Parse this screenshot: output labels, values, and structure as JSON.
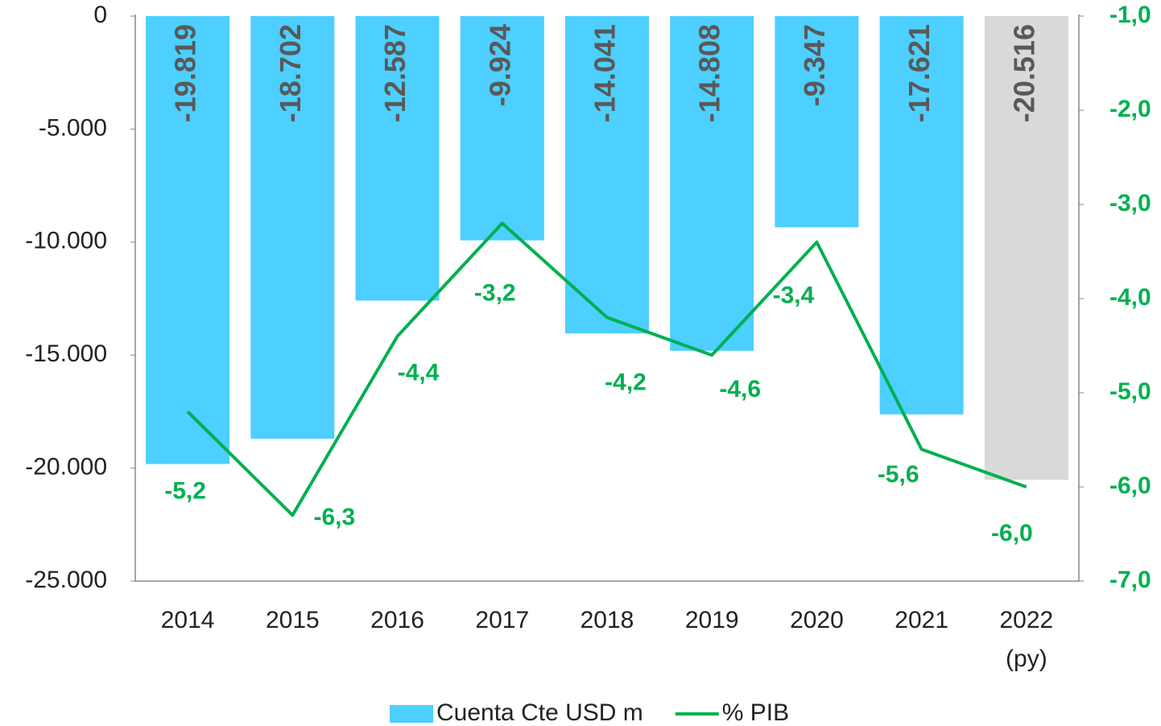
{
  "chart_data": {
    "type": "bar",
    "categories": [
      "2014",
      "2015",
      "2016",
      "2017",
      "2018",
      "2019",
      "2020",
      "2021",
      "2022 (py)"
    ],
    "series": [
      {
        "name": "Cuenta Cte USD m",
        "type": "bar",
        "color": "#4dcfff",
        "colors": [
          "#4dcfff",
          "#4dcfff",
          "#4dcfff",
          "#4dcfff",
          "#4dcfff",
          "#4dcfff",
          "#4dcfff",
          "#4dcfff",
          "#d9d9d9"
        ],
        "values": [
          -19819,
          -18702,
          -12587,
          -9924,
          -14041,
          -14808,
          -9347,
          -17621,
          -20516
        ],
        "value_labels": [
          "-19.819",
          "-18.702",
          "-12.587",
          "-9.924",
          "-14.041",
          "-14.808",
          "-9.347",
          "-17.621",
          "-20.516"
        ]
      },
      {
        "name": "% PIB",
        "type": "line",
        "axis": "y2",
        "color": "#00b050",
        "values": [
          -5.2,
          -6.3,
          -4.4,
          -3.2,
          -4.2,
          -4.6,
          -3.4,
          -5.6,
          -6.0
        ],
        "value_labels": [
          "-5,2",
          "-6,3",
          "-4,4",
          "-3,2",
          "-4,2",
          "-4,6",
          "-3,4",
          "-5,6",
          "-6,0"
        ]
      }
    ],
    "ylim": [
      -25000,
      0
    ],
    "yticks": [
      0,
      {
        "value": -5000,
        "label": "-5.000"
      },
      {
        "value": -10000,
        "label": "-10.000"
      },
      {
        "value": -15000,
        "label": "-15.000"
      },
      {
        "value": -20000,
        "label": "-20.000"
      },
      {
        "value": -25000,
        "label": "-25.000"
      }
    ],
    "y2lim": [
      -7,
      -1
    ],
    "y2ticks": [
      {
        "value": -1,
        "label": "-1,0"
      },
      {
        "value": -2,
        "label": "-2,0"
      },
      {
        "value": -3,
        "label": "-3,0"
      },
      {
        "value": -4,
        "label": "-4,0"
      },
      {
        "value": -5,
        "label": "-5,0"
      },
      {
        "value": -6,
        "label": "-6,0"
      },
      {
        "value": -7,
        "label": "-7,0"
      }
    ],
    "legend": "bottom"
  }
}
